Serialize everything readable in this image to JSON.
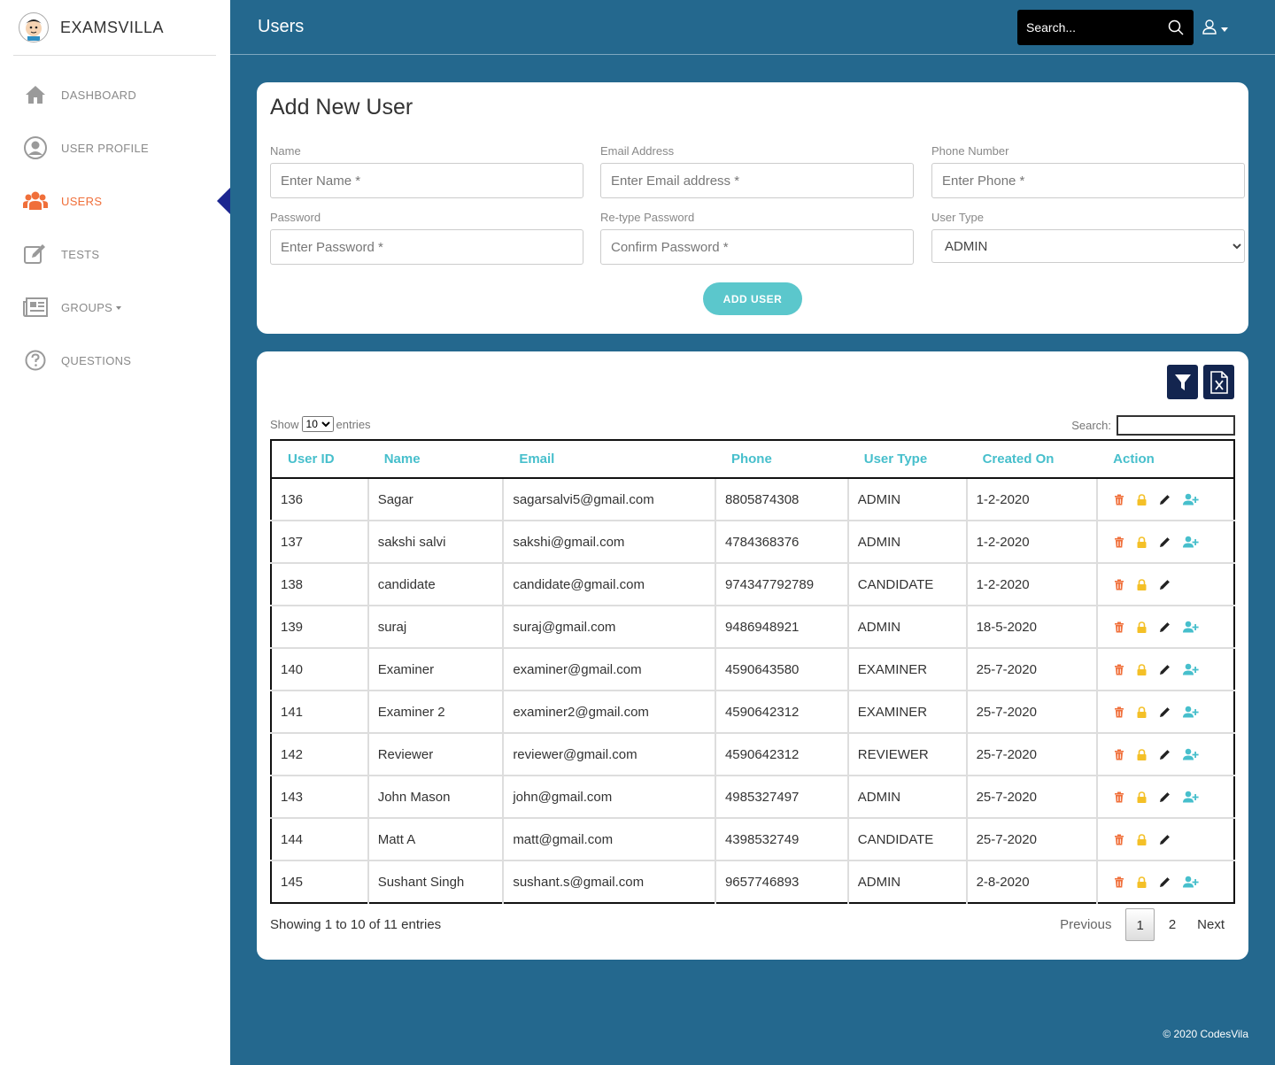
{
  "brand": {
    "name": "EXAMSVILLA"
  },
  "sidebar": {
    "items": [
      {
        "label": "DASHBOARD",
        "icon": "home-icon"
      },
      {
        "label": "USER PROFILE",
        "icon": "user-circle-icon"
      },
      {
        "label": "USERS",
        "icon": "users-icon",
        "active": true
      },
      {
        "label": "TESTS",
        "icon": "edit-icon"
      },
      {
        "label": "GROUPS",
        "icon": "newspaper-icon",
        "dropdown": true
      },
      {
        "label": "QUESTIONS",
        "icon": "question-icon"
      }
    ]
  },
  "header": {
    "title": "Users",
    "search_placeholder": "Search..."
  },
  "form": {
    "title": "Add New User",
    "name_label": "Name",
    "name_placeholder": "Enter Name *",
    "email_label": "Email Address",
    "email_placeholder": "Enter Email address *",
    "phone_label": "Phone Number",
    "phone_placeholder": "Enter Phone *",
    "password_label": "Password",
    "password_placeholder": "Enter Password *",
    "retype_label": "Re-type Password",
    "retype_placeholder": "Confirm Password *",
    "usertype_label": "User Type",
    "usertype_selected": "ADMIN",
    "add_button": "ADD USER"
  },
  "table": {
    "show_label": "Show",
    "show_value": "10",
    "entries_label": "entries",
    "search_label": "Search:",
    "columns": [
      "User ID",
      "Name",
      "Email",
      "Phone",
      "User Type",
      "Created On",
      "Action"
    ],
    "rows": [
      {
        "id": "136",
        "name": "Sagar",
        "email": "sagarsalvi5@gmail.com",
        "phone": "8805874308",
        "type": "ADMIN",
        "created": "1-2-2020",
        "assign": true
      },
      {
        "id": "137",
        "name": "sakshi salvi",
        "email": "sakshi@gmail.com",
        "phone": "4784368376",
        "type": "ADMIN",
        "created": "1-2-2020",
        "assign": true
      },
      {
        "id": "138",
        "name": "candidate",
        "email": "candidate@gmail.com",
        "phone": "974347792789",
        "type": "CANDIDATE",
        "created": "1-2-2020",
        "assign": false
      },
      {
        "id": "139",
        "name": "suraj",
        "email": "suraj@gmail.com",
        "phone": "9486948921",
        "type": "ADMIN",
        "created": "18-5-2020",
        "assign": true
      },
      {
        "id": "140",
        "name": "Examiner",
        "email": "examiner@gmail.com",
        "phone": "4590643580",
        "type": "EXAMINER",
        "created": "25-7-2020",
        "assign": true
      },
      {
        "id": "141",
        "name": "Examiner 2",
        "email": "examiner2@gmail.com",
        "phone": "4590642312",
        "type": "EXAMINER",
        "created": "25-7-2020",
        "assign": true
      },
      {
        "id": "142",
        "name": "Reviewer",
        "email": "reviewer@gmail.com",
        "phone": "4590642312",
        "type": "REVIEWER",
        "created": "25-7-2020",
        "assign": true
      },
      {
        "id": "143",
        "name": "John Mason",
        "email": "john@gmail.com",
        "phone": "4985327497",
        "type": "ADMIN",
        "created": "25-7-2020",
        "assign": true
      },
      {
        "id": "144",
        "name": "Matt A",
        "email": "matt@gmail.com",
        "phone": "4398532749",
        "type": "CANDIDATE",
        "created": "25-7-2020",
        "assign": false
      },
      {
        "id": "145",
        "name": "Sushant Singh",
        "email": "sushant.s@gmail.com",
        "phone": "9657746893",
        "type": "ADMIN",
        "created": "2-8-2020",
        "assign": true
      }
    ],
    "info": "Showing 1 to 10 of 11 entries",
    "pagination": {
      "previous": "Previous",
      "pages": [
        "1",
        "2"
      ],
      "current": "1",
      "next": "Next"
    }
  },
  "footer": {
    "text": "© 2020 CodesVila"
  },
  "colors": {
    "background": "#24688e",
    "accent_orange": "#f06f3a",
    "teal": "#5bc7cc",
    "header_text": "#47bfcc",
    "navy": "#13254f",
    "delete_icon": "#f06f3a",
    "lock_icon": "#f4c027",
    "edit_icon": "#222222"
  }
}
